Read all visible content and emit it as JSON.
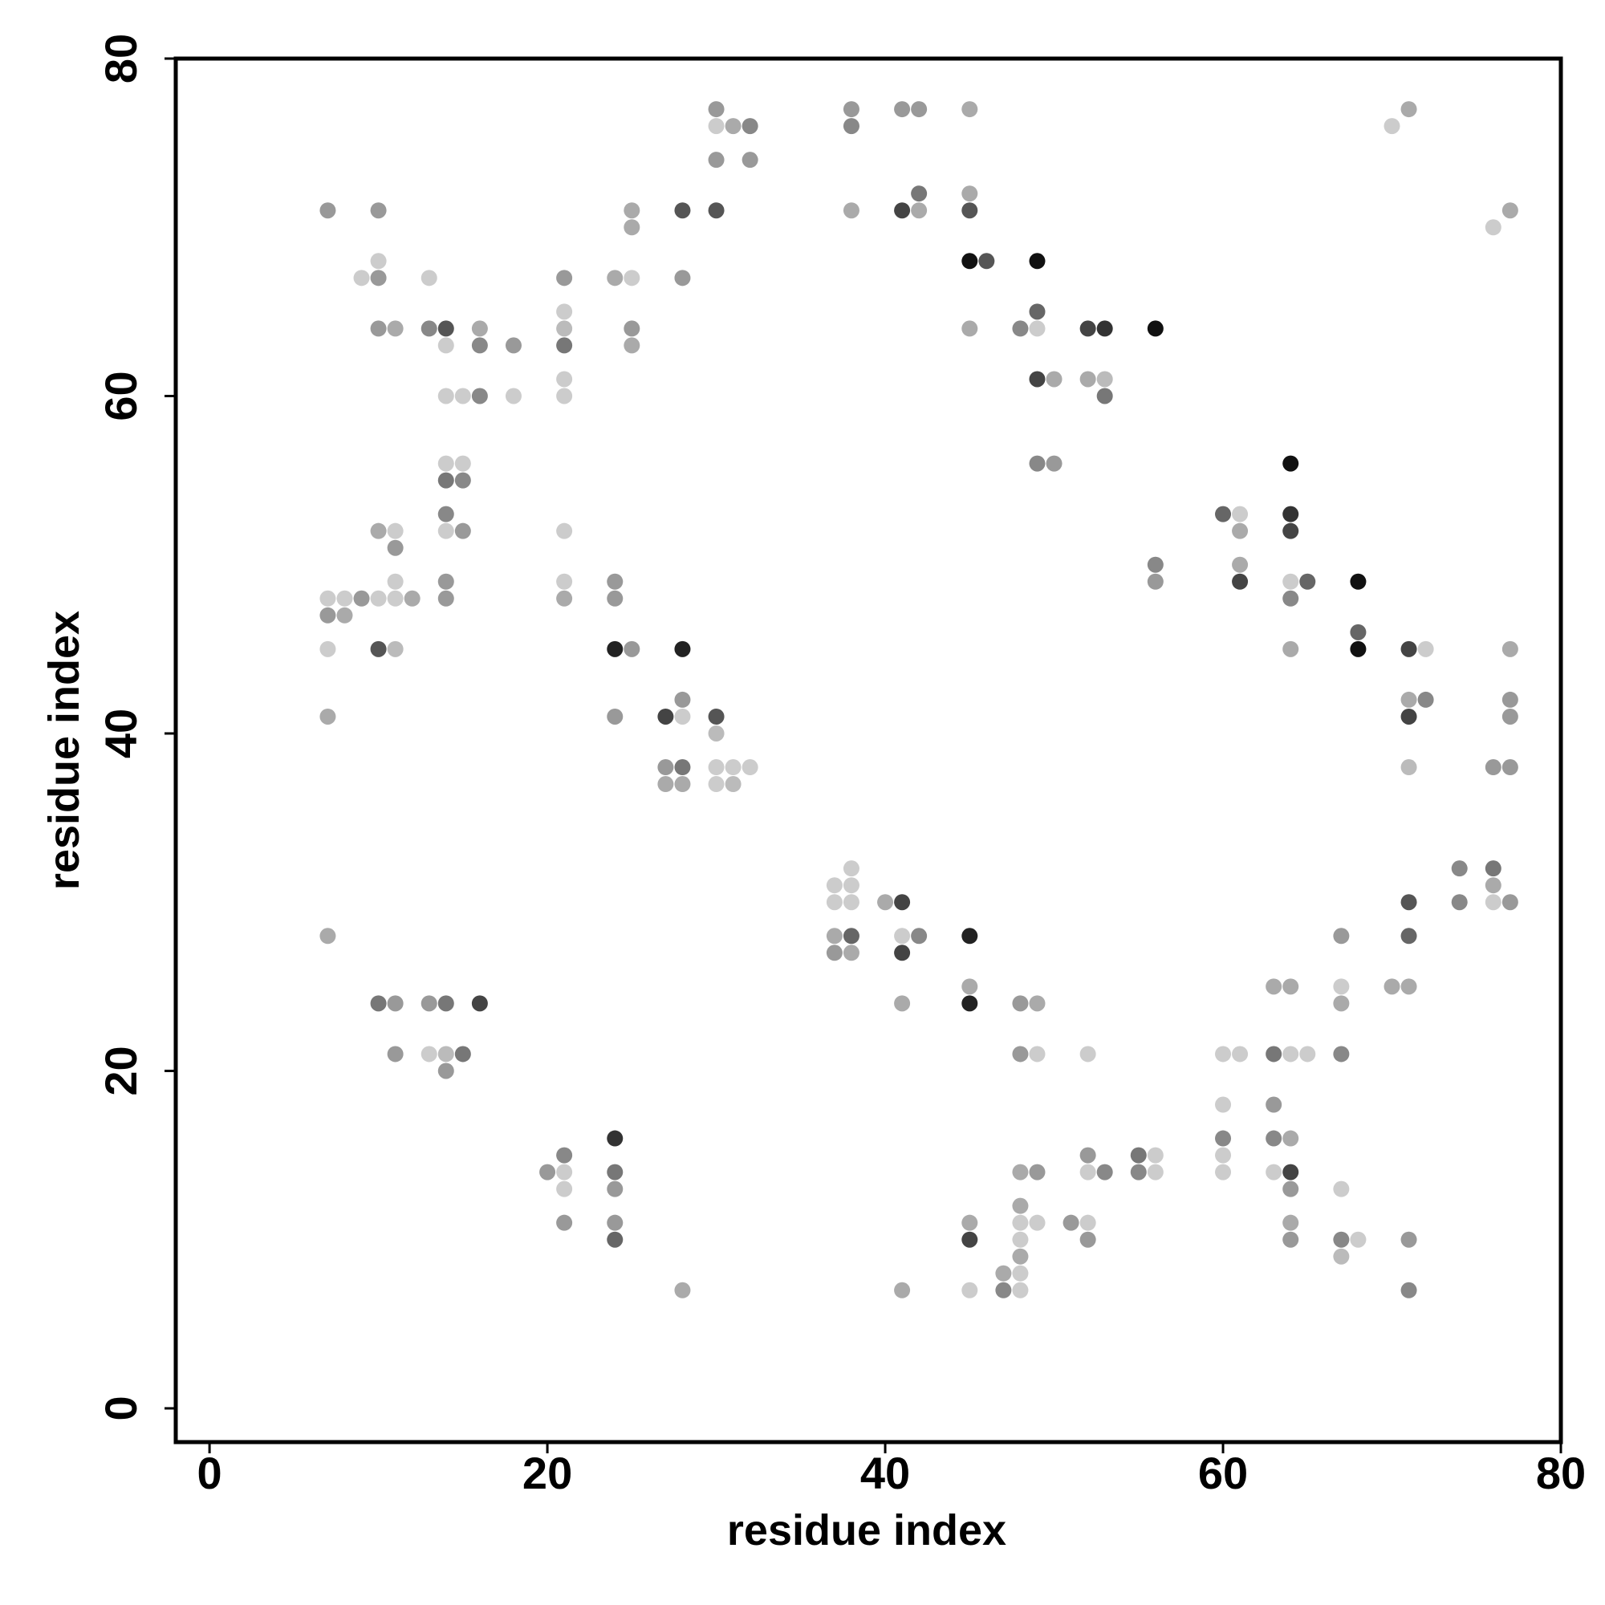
{
  "chart_data": {
    "type": "scatter",
    "xlabel": "residue index",
    "ylabel": "residue index",
    "xlim": [
      -2,
      80
    ],
    "ylim": [
      -2,
      80
    ],
    "xticks": [
      0,
      20,
      40,
      60,
      80
    ],
    "yticks": [
      0,
      20,
      40,
      60,
      80
    ],
    "grid": false,
    "x": [
      30,
      30,
      31,
      32,
      30,
      32,
      28,
      30,
      38,
      38,
      38,
      41,
      42,
      42,
      41,
      42,
      45,
      45,
      45,
      45,
      46,
      49,
      45,
      48,
      49,
      49,
      49,
      50,
      52,
      53,
      56,
      52,
      53,
      53,
      49,
      50,
      70,
      71,
      76,
      77,
      7,
      10,
      9,
      10,
      10,
      13,
      10,
      11,
      13,
      14,
      14,
      16,
      16,
      18,
      14,
      15,
      16,
      18,
      21,
      21,
      21,
      21,
      21,
      21,
      24,
      25,
      25,
      25,
      25,
      25,
      28,
      14,
      15,
      14,
      15,
      14,
      14,
      15,
      10,
      11,
      11,
      11,
      14,
      7,
      8,
      9,
      10,
      11,
      12,
      14,
      7,
      8,
      7,
      10,
      11,
      7,
      21,
      21,
      21,
      24,
      24,
      24,
      25,
      28,
      24,
      27,
      28,
      28,
      27,
      28,
      27,
      28,
      30,
      30,
      30,
      31,
      32,
      30,
      31,
      56,
      56,
      60,
      61,
      61,
      61,
      61,
      64,
      64,
      64,
      64,
      65,
      64,
      64,
      68,
      68,
      68,
      71,
      72,
      71,
      72,
      71,
      71,
      77,
      77,
      77,
      76,
      77,
      7,
      10,
      11,
      13,
      14,
      16,
      11,
      13,
      14,
      15,
      14,
      37,
      38,
      38,
      37,
      38,
      40,
      41,
      37,
      38,
      37,
      38,
      41,
      42,
      41,
      41,
      45,
      45,
      45,
      48,
      49,
      48,
      49,
      52,
      74,
      76,
      76,
      74,
      76,
      77,
      71,
      71,
      67,
      70,
      71,
      63,
      64,
      67,
      67,
      60,
      61,
      63,
      64,
      65,
      67,
      20,
      21,
      21,
      21,
      21,
      24,
      24,
      24,
      24,
      24,
      28,
      41,
      45,
      45,
      45,
      47,
      47,
      48,
      48,
      48,
      48,
      48,
      48,
      48,
      49,
      49,
      51,
      52,
      52,
      52,
      52,
      53,
      55,
      55,
      56,
      56,
      60,
      60,
      60,
      60,
      63,
      63,
      64,
      63,
      64,
      64,
      64,
      64,
      67,
      67,
      68,
      67,
      71,
      71
    ],
    "y": [
      77,
      76,
      76,
      76,
      74,
      74,
      71,
      71,
      77,
      76,
      71,
      77,
      77,
      72,
      71,
      71,
      77,
      72,
      71,
      68,
      68,
      68,
      64,
      64,
      65,
      64,
      61,
      61,
      64,
      64,
      64,
      61,
      61,
      60,
      56,
      56,
      76,
      77,
      70,
      71,
      71,
      71,
      67,
      68,
      67,
      67,
      64,
      64,
      64,
      64,
      63,
      64,
      63,
      63,
      60,
      60,
      60,
      60,
      67,
      65,
      64,
      63,
      61,
      60,
      67,
      67,
      71,
      70,
      64,
      63,
      67,
      56,
      56,
      55,
      55,
      53,
      52,
      52,
      52,
      52,
      51,
      49,
      49,
      48,
      48,
      48,
      48,
      48,
      48,
      48,
      47,
      47,
      45,
      45,
      45,
      41,
      52,
      49,
      48,
      49,
      48,
      45,
      45,
      45,
      41,
      41,
      41,
      42,
      38,
      38,
      37,
      37,
      41,
      40,
      38,
      38,
      38,
      37,
      37,
      50,
      49,
      53,
      53,
      52,
      50,
      49,
      56,
      53,
      52,
      49,
      49,
      48,
      45,
      49,
      46,
      45,
      45,
      45,
      42,
      42,
      41,
      38,
      45,
      42,
      41,
      38,
      38,
      28,
      24,
      24,
      24,
      24,
      24,
      21,
      21,
      21,
      21,
      20,
      31,
      32,
      31,
      30,
      30,
      30,
      30,
      28,
      28,
      27,
      27,
      28,
      28,
      27,
      24,
      28,
      25,
      24,
      24,
      24,
      21,
      21,
      21,
      32,
      32,
      31,
      30,
      30,
      30,
      30,
      28,
      28,
      25,
      25,
      25,
      25,
      25,
      24,
      21,
      21,
      21,
      21,
      21,
      21,
      14,
      15,
      14,
      13,
      11,
      16,
      14,
      13,
      11,
      10,
      7,
      7,
      11,
      10,
      7,
      8,
      7,
      12,
      11,
      10,
      9,
      8,
      7,
      14,
      14,
      11,
      11,
      11,
      10,
      15,
      14,
      14,
      15,
      14,
      15,
      14,
      18,
      16,
      15,
      14,
      18,
      16,
      16,
      14,
      14,
      13,
      11,
      10,
      13,
      10,
      10,
      9,
      10,
      7
    ],
    "colors": [
      "#999",
      "#ccc",
      "#aaa",
      "#888",
      "#999",
      "#999",
      "#555",
      "#555",
      "#999",
      "#888",
      "#aaa",
      "#999",
      "#999",
      "#777",
      "#444",
      "#aaa",
      "#aaa",
      "#aaa",
      "#555",
      "#111",
      "#555",
      "#111",
      "#aaa",
      "#888",
      "#666",
      "#ccc",
      "#444",
      "#aaa",
      "#444",
      "#333",
      "#111",
      "#aaa",
      "#bbb",
      "#777",
      "#888",
      "#999",
      "#ccc",
      "#aaa",
      "#ccc",
      "#aaa",
      "#999",
      "#999",
      "#ccc",
      "#ccc",
      "#999",
      "#ccc",
      "#999",
      "#aaa",
      "#888",
      "#555",
      "#ccc",
      "#aaa",
      "#888",
      "#999",
      "#ccc",
      "#ccc",
      "#888",
      "#ccc",
      "#999",
      "#ccc",
      "#bbb",
      "#777",
      "#ccc",
      "#ccc",
      "#aaa",
      "#ccc",
      "#aaa",
      "#aaa",
      "#999",
      "#aaa",
      "#999",
      "#ccc",
      "#ccc",
      "#777",
      "#888",
      "#888",
      "#ccc",
      "#999",
      "#aaa",
      "#ccc",
      "#999",
      "#ccc",
      "#999",
      "#ccc",
      "#ccc",
      "#999",
      "#ccc",
      "#ccc",
      "#aaa",
      "#999",
      "#999",
      "#aaa",
      "#ccc",
      "#555",
      "#bbb",
      "#aaa",
      "#ccc",
      "#ccc",
      "#aaa",
      "#999",
      "#999",
      "#222",
      "#999",
      "#222",
      "#999",
      "#444",
      "#ccc",
      "#999",
      "#999",
      "#777",
      "#aaa",
      "#aaa",
      "#555",
      "#bbb",
      "#ccc",
      "#ccc",
      "#ccc",
      "#ccc",
      "#bbb",
      "#888",
      "#999",
      "#666",
      "#ccc",
      "#aaa",
      "#aaa",
      "#444",
      "#111",
      "#333",
      "#444",
      "#ccc",
      "#666",
      "#888",
      "#aaa",
      "#111",
      "#666",
      "#111",
      "#444",
      "#ccc",
      "#aaa",
      "#888",
      "#444",
      "#bbb",
      "#aaa",
      "#999",
      "#999",
      "#999",
      "#999",
      "#aaa",
      "#777",
      "#999",
      "#999",
      "#777",
      "#444",
      "#999",
      "#ccc",
      "#bbb",
      "#777",
      "#999",
      "#ccc",
      "#ccc",
      "#ccc",
      "#ccc",
      "#ccc",
      "#aaa",
      "#444",
      "#aaa",
      "#666",
      "#999",
      "#aaa",
      "#ccc",
      "#888",
      "#444",
      "#aaa",
      "#222",
      "#aaa",
      "#222",
      "#999",
      "#aaa",
      "#999",
      "#ccc",
      "#ccc",
      "#888",
      "#777",
      "#aaa",
      "#888",
      "#ccc",
      "#999",
      "#555",
      "#666",
      "#999",
      "#aaa",
      "#aaa",
      "#aaa",
      "#aaa",
      "#ccc",
      "#aaa",
      "#ccc",
      "#ccc",
      "#777",
      "#ccc",
      "#ccc",
      "#888",
      "#999",
      "#888",
      "#ccc",
      "#ccc",
      "#999",
      "#333",
      "#777",
      "#999",
      "#999",
      "#666",
      "#aaa",
      "#aaa",
      "#aaa",
      "#444",
      "#ccc",
      "#aaa",
      "#888",
      "#aaa",
      "#ccc",
      "#ccc",
      "#aaa",
      "#ccc",
      "#ccc",
      "#aaa",
      "#999",
      "#ccc",
      "#999",
      "#ccc",
      "#999",
      "#999",
      "#ccc",
      "#888",
      "#777",
      "#888",
      "#ccc",
      "#ccc",
      "#ccc",
      "#888",
      "#ccc",
      "#ccc",
      "#999",
      "#888",
      "#aaa",
      "#ccc",
      "#444",
      "#999",
      "#aaa",
      "#999",
      "#ccc",
      "#888",
      "#ccc",
      "#bbb",
      "#999",
      "#888"
    ]
  }
}
